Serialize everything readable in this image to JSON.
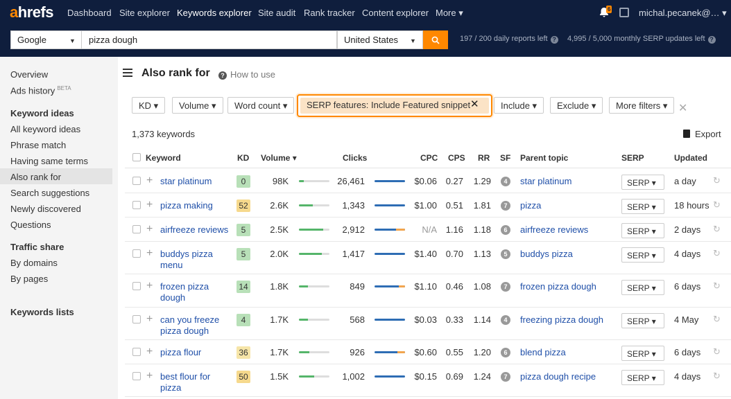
{
  "nav": {
    "logo_a": "a",
    "logo_rest": "hrefs",
    "items": [
      "Dashboard",
      "Site explorer",
      "Keywords explorer",
      "Site audit",
      "Rank tracker",
      "Content explorer",
      "More ▾"
    ],
    "active": "Keywords explorer",
    "notif_count": "6",
    "user": "michal.pecanek@… ▾"
  },
  "search": {
    "engine": "Google",
    "keyword": "pizza dough",
    "country": "United States",
    "daily_quota": "197 / 200 daily reports left",
    "monthly_quota": "4,995 / 5,000 monthly SERP updates left"
  },
  "sidebar": {
    "overview": "Overview",
    "ads_history": "Ads history",
    "beta": "BETA",
    "keyword_ideas_head": "Keyword ideas",
    "keyword_ideas": [
      "All keyword ideas",
      "Phrase match",
      "Having same terms",
      "Also rank for",
      "Search suggestions",
      "Newly discovered",
      "Questions"
    ],
    "traffic_share_head": "Traffic share",
    "traffic_share": [
      "By domains",
      "By pages"
    ],
    "keywords_lists": "Keywords lists",
    "active_item": "Also rank for"
  },
  "page": {
    "title": "Also rank for",
    "how_to": "How to use",
    "keyword_count": "1,373 keywords",
    "export": "Export"
  },
  "filters": {
    "kd": "KD ▾",
    "volume": "Volume ▾",
    "word_count": "Word count ▾",
    "serp_features": "SERP features: Include Featured snippet",
    "include": "Include ▾",
    "exclude": "Exclude ▾",
    "more": "More filters ▾"
  },
  "columns": [
    "Keyword",
    "KD",
    "Volume ▾",
    "Clicks",
    "CPC",
    "CPS",
    "RR",
    "SF",
    "Parent topic",
    "SERP",
    "Updated"
  ],
  "rows": [
    {
      "keyword": "star platinum",
      "kd": "0",
      "kd_color": "#b8e0b8",
      "volume": "98K",
      "vol_fill": 0.15,
      "clicks": "26,461",
      "paid_fraction": 0,
      "cpc": "$0.06",
      "cps": "0.27",
      "rr": "1.29",
      "sf": "4",
      "parent": "star platinum",
      "serp": "SERP ▾",
      "updated": "a day"
    },
    {
      "keyword": "pizza making",
      "kd": "52",
      "kd_color": "#f6d98d",
      "volume": "2.6K",
      "vol_fill": 0.45,
      "clicks": "1,343",
      "paid_fraction": 0,
      "cpc": "$1.00",
      "cps": "0.51",
      "rr": "1.81",
      "sf": "7",
      "parent": "pizza",
      "serp": "SERP ▾",
      "updated": "18 hours"
    },
    {
      "keyword": "airfreeze reviews",
      "kd": "5",
      "kd_color": "#b8e0b8",
      "volume": "2.5K",
      "vol_fill": 0.8,
      "clicks": "2,912",
      "paid_fraction": 0.3,
      "cpc": "N/A",
      "cps": "1.16",
      "rr": "1.18",
      "sf": "6",
      "parent": "airfreeze reviews",
      "serp": "SERP ▾",
      "updated": "2 days"
    },
    {
      "keyword": "buddys pizza menu",
      "kd": "5",
      "kd_color": "#b8e0b8",
      "volume": "2.0K",
      "vol_fill": 0.75,
      "clicks": "1,417",
      "paid_fraction": 0,
      "cpc": "$1.40",
      "cps": "0.70",
      "rr": "1.13",
      "sf": "5",
      "parent": "buddys pizza",
      "serp": "SERP ▾",
      "updated": "4 days"
    },
    {
      "keyword": "frozen pizza dough",
      "kd": "14",
      "kd_color": "#b8e0b8",
      "volume": "1.8K",
      "vol_fill": 0.3,
      "clicks": "849",
      "paid_fraction": 0.2,
      "cpc": "$1.10",
      "cps": "0.46",
      "rr": "1.08",
      "sf": "7",
      "parent": "frozen pizza dough",
      "serp": "SERP ▾",
      "updated": "6 days"
    },
    {
      "keyword": "can you freeze pizza dough",
      "kd": "4",
      "kd_color": "#b8e0b8",
      "volume": "1.7K",
      "vol_fill": 0.3,
      "clicks": "568",
      "paid_fraction": 0,
      "cpc": "$0.03",
      "cps": "0.33",
      "rr": "1.14",
      "sf": "4",
      "parent": "freezing pizza dough",
      "serp": "SERP ▾",
      "updated": "4 May"
    },
    {
      "keyword": "pizza flour",
      "kd": "36",
      "kd_color": "#f6e5a8",
      "volume": "1.7K",
      "vol_fill": 0.35,
      "clicks": "926",
      "paid_fraction": 0.25,
      "cpc": "$0.60",
      "cps": "0.55",
      "rr": "1.20",
      "sf": "6",
      "parent": "blend pizza",
      "serp": "SERP ▾",
      "updated": "6 days"
    },
    {
      "keyword": "best flour for pizza",
      "kd": "50",
      "kd_color": "#f6d98d",
      "volume": "1.5K",
      "vol_fill": 0.5,
      "clicks": "1,002",
      "paid_fraction": 0,
      "cpc": "$0.15",
      "cps": "0.69",
      "rr": "1.24",
      "sf": "7",
      "parent": "pizza dough recipe",
      "serp": "SERP ▾",
      "updated": "4 days"
    }
  ]
}
